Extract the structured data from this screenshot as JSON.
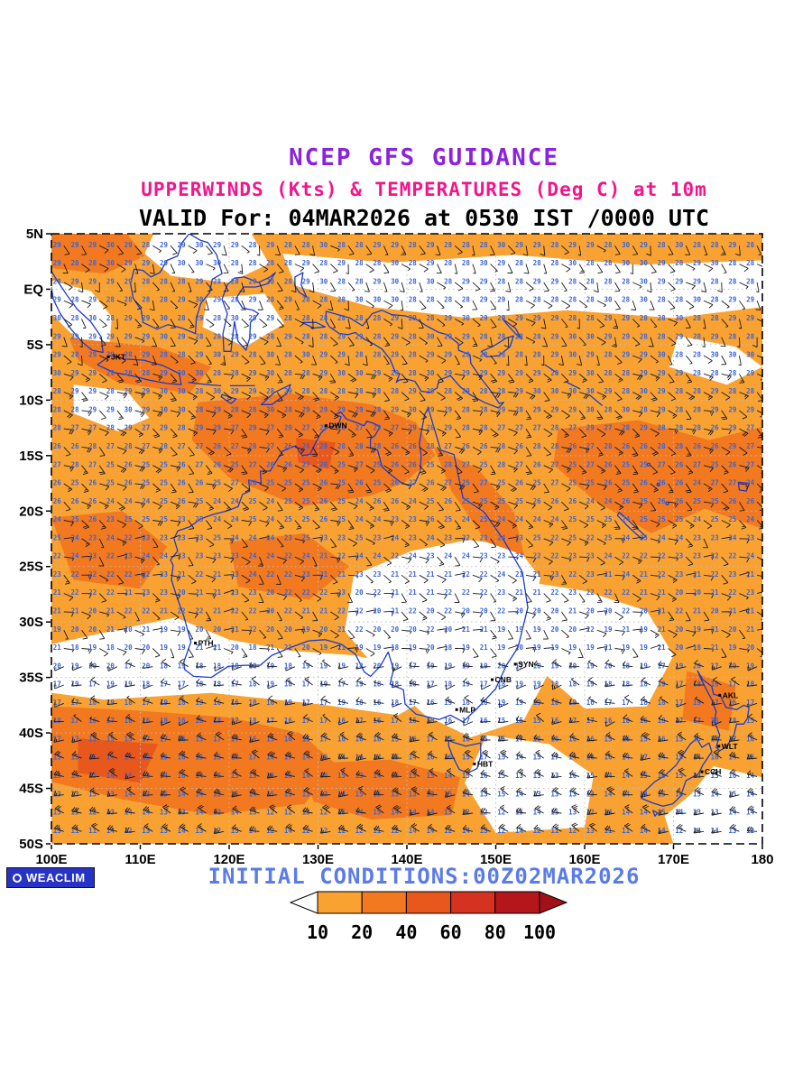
{
  "titles": {
    "line1": "NCEP GFS GUIDANCE",
    "line2": "UPPERWINDS (Kts) & TEMPERATURES (Deg C) at 10m",
    "line3": "VALID For: 04MAR2026 at 0530 IST /0000 UTC"
  },
  "footer": {
    "initial_conditions": "INITIAL CONDITIONS:00Z02MAR2026",
    "logo_text": "WEACLIM"
  },
  "axes": {
    "lat_labels": [
      "5N",
      "EQ",
      "5S",
      "10S",
      "15S",
      "20S",
      "25S",
      "30S",
      "35S",
      "40S",
      "45S",
      "50S"
    ],
    "lon_labels": [
      "100E",
      "110E",
      "120E",
      "130E",
      "140E",
      "150E",
      "160E",
      "170E",
      "180"
    ]
  },
  "colorbar": {
    "tick_labels": [
      "10",
      "20",
      "40",
      "60",
      "80",
      "100"
    ],
    "segment_colors": [
      "#F9A232",
      "#F2791F",
      "#E8581C",
      "#D63222",
      "#B5161B"
    ],
    "arrow_left_color": "#FFFFFF",
    "arrow_right_color": "#A01218"
  },
  "stations": [
    {
      "label": "JKT",
      "lon": 106.4,
      "lat": -6.1
    },
    {
      "label": "DWN",
      "lon": 130.9,
      "lat": -12.3
    },
    {
      "label": "PTH",
      "lon": 116.2,
      "lat": -31.9
    },
    {
      "label": "SYN",
      "lon": 152.2,
      "lat": -33.8
    },
    {
      "label": "CNB",
      "lon": 149.6,
      "lat": -35.2
    },
    {
      "label": "MLP",
      "lon": 145.6,
      "lat": -37.9
    },
    {
      "label": "HBT",
      "lon": 147.6,
      "lat": -42.8
    },
    {
      "label": "AKL",
      "lon": 175.2,
      "lat": -36.6
    },
    {
      "label": "WLT",
      "lon": 175.1,
      "lat": -41.2
    },
    {
      "label": "CCH",
      "lon": 173.2,
      "lat": -43.5
    }
  ],
  "map_extent": {
    "lon_min": 100,
    "lon_max": 180,
    "lat_min": -50,
    "lat_max": 5
  },
  "colors": {
    "title1": "#8B22DD",
    "title2": "#F5148C",
    "title3": "#000000",
    "footer_text": "#5B7BE8",
    "coastline": "#1B3ACB",
    "temp_text": "#3A64D8",
    "barb": "#1A1A1A",
    "shade_light": "#F9A232",
    "shade_mid": "#F2791F",
    "shade_deep": "#E8581C",
    "gridline": "#BDBDBD",
    "logo_bg": "#2633C7"
  }
}
